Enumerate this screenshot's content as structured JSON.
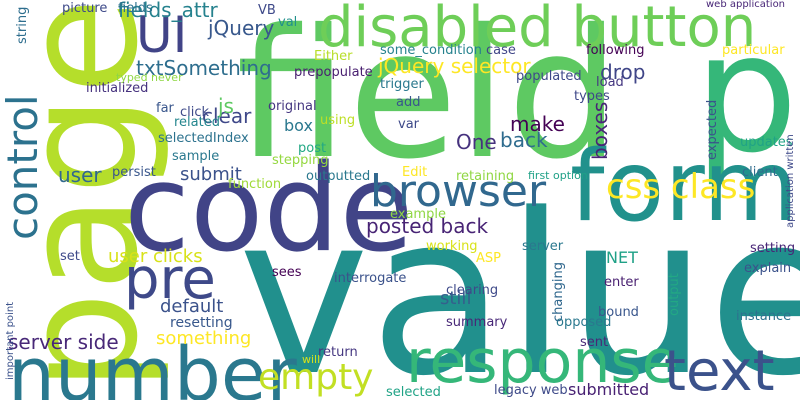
{
  "words": [
    {
      "text": "value",
      "color": "#21908d"
    },
    {
      "text": "field",
      "color": "#5ec962"
    },
    {
      "text": "page",
      "color": "#b5de2b"
    },
    {
      "text": "code",
      "color": "#414487"
    },
    {
      "text": "p",
      "color": "#35b779"
    },
    {
      "text": "form",
      "color": "#21918c"
    },
    {
      "text": "disabled button",
      "color": "#6ece58"
    },
    {
      "text": "number",
      "color": "#2a788e"
    },
    {
      "text": "response",
      "color": "#35b779"
    },
    {
      "text": "text",
      "color": "#3b528b"
    },
    {
      "text": "browser",
      "color": "#31688e"
    },
    {
      "text": "pre",
      "color": "#3e4989"
    },
    {
      "text": "control",
      "color": "#2c728e"
    },
    {
      "text": "UI",
      "color": "#414487"
    },
    {
      "text": "css class",
      "color": "#fde725"
    },
    {
      "text": "empty",
      "color": "#c2df23"
    },
    {
      "text": "server side",
      "color": "#482878"
    },
    {
      "text": "jQuery selector",
      "color": "#fde725"
    },
    {
      "text": "posted back",
      "color": "#482475"
    },
    {
      "text": "fields_attr",
      "color": "#26828e"
    },
    {
      "text": "jQuery",
      "color": "#38588c"
    },
    {
      "text": "txtSomething",
      "color": "#2e6e8e"
    },
    {
      "text": "One",
      "color": "#46327e"
    },
    {
      "text": "back",
      "color": "#2f6c8e"
    },
    {
      "text": "make",
      "color": "#440154"
    },
    {
      "text": "clear",
      "color": "#3f4889"
    },
    {
      "text": "js",
      "color": "#5ec962"
    },
    {
      "text": "drop",
      "color": "#404688"
    },
    {
      "text": "boxes",
      "color": "#482677"
    },
    {
      "text": "user",
      "color": "#31688e"
    },
    {
      "text": "submit",
      "color": "#3b528b"
    },
    {
      "text": "user clicks",
      "color": "#d8e219"
    },
    {
      "text": "default",
      "color": "#3b528b"
    },
    {
      "text": "something",
      "color": "#fde725"
    },
    {
      "text": "resetting",
      "color": "#38588c"
    },
    {
      "text": "still",
      "color": "#34608d"
    },
    {
      "text": "NET",
      "color": "#1fa187"
    },
    {
      "text": "submitted",
      "color": "#482173"
    },
    {
      "text": "box",
      "color": "#2a788e"
    },
    {
      "text": "original",
      "color": "#453781"
    },
    {
      "text": "initialized",
      "color": "#46327e"
    },
    {
      "text": "prepopulate",
      "color": "#481f70"
    },
    {
      "text": "populated",
      "color": "#3e4989"
    },
    {
      "text": "load",
      "color": "#453781"
    },
    {
      "text": "types",
      "color": "#3f4889"
    },
    {
      "text": "selectedIndex",
      "color": "#2c728e"
    },
    {
      "text": "related",
      "color": "#24868e"
    },
    {
      "text": "stepping",
      "color": "#95d840"
    },
    {
      "text": "persist",
      "color": "#39568c"
    },
    {
      "text": "outputted",
      "color": "#2a788e"
    },
    {
      "text": "retaining",
      "color": "#90d743"
    },
    {
      "text": "function",
      "color": "#a0da39"
    },
    {
      "text": "example",
      "color": "#8fd744"
    },
    {
      "text": "Either",
      "color": "#b8de29"
    },
    {
      "text": "some_condition",
      "color": "#26828e"
    },
    {
      "text": "following",
      "color": "#440154"
    },
    {
      "text": "particular",
      "color": "#fde725"
    },
    {
      "text": "case",
      "color": "#404688"
    },
    {
      "text": "trigger",
      "color": "#2a788e"
    },
    {
      "text": "add",
      "color": "#39568c"
    },
    {
      "text": "var",
      "color": "#3e4a89"
    },
    {
      "text": "Edit",
      "color": "#fde725"
    },
    {
      "text": "post",
      "color": "#22a884"
    },
    {
      "text": "sample",
      "color": "#2a788e"
    },
    {
      "text": "first option",
      "color": "#1fa187"
    },
    {
      "text": "client",
      "color": "#2f6c8e"
    },
    {
      "text": "updates",
      "color": "#20a386"
    },
    {
      "text": "expected",
      "color": "#3b528b"
    },
    {
      "text": "setting",
      "color": "#482677"
    },
    {
      "text": "explain",
      "color": "#3b528b"
    },
    {
      "text": "instance",
      "color": "#2c728e"
    },
    {
      "text": "server",
      "color": "#2a788e"
    },
    {
      "text": "working",
      "color": "#d8e219"
    },
    {
      "text": "changing",
      "color": "#31688e"
    },
    {
      "text": "enter",
      "color": "#481f70"
    },
    {
      "text": "bound",
      "color": "#39568c"
    },
    {
      "text": "output",
      "color": "#22a884"
    },
    {
      "text": "sees",
      "color": "#440154"
    },
    {
      "text": "interrogate",
      "color": "#3b528b"
    },
    {
      "text": "ASP",
      "color": "#fde725"
    },
    {
      "text": "clearing",
      "color": "#3e4989"
    },
    {
      "text": "summary",
      "color": "#482878"
    },
    {
      "text": "opposed",
      "color": "#2a788e"
    },
    {
      "text": "return",
      "color": "#453781"
    },
    {
      "text": "will",
      "color": "#d8e219"
    },
    {
      "text": "sent",
      "color": "#482878"
    },
    {
      "text": "legacy web",
      "color": "#3e4a89"
    },
    {
      "text": "selected",
      "color": "#20a386"
    },
    {
      "text": "set",
      "color": "#3e4989"
    },
    {
      "text": "string",
      "color": "#2e6e8e"
    },
    {
      "text": "picture",
      "color": "#3e4a89"
    },
    {
      "text": "fields",
      "color": "#2c728e"
    },
    {
      "text": "VB",
      "color": "#3e4989"
    },
    {
      "text": "val",
      "color": "#21918c"
    },
    {
      "text": "web application",
      "color": "#482677"
    },
    {
      "text": "typed never",
      "color": "#8fd744"
    },
    {
      "text": "far",
      "color": "#39568c"
    },
    {
      "text": "click",
      "color": "#3e4a89"
    },
    {
      "text": "using",
      "color": "#bddf26"
    },
    {
      "text": "important point",
      "color": "#3b528b"
    },
    {
      "text": "application written",
      "color": "#3e4989"
    }
  ]
}
